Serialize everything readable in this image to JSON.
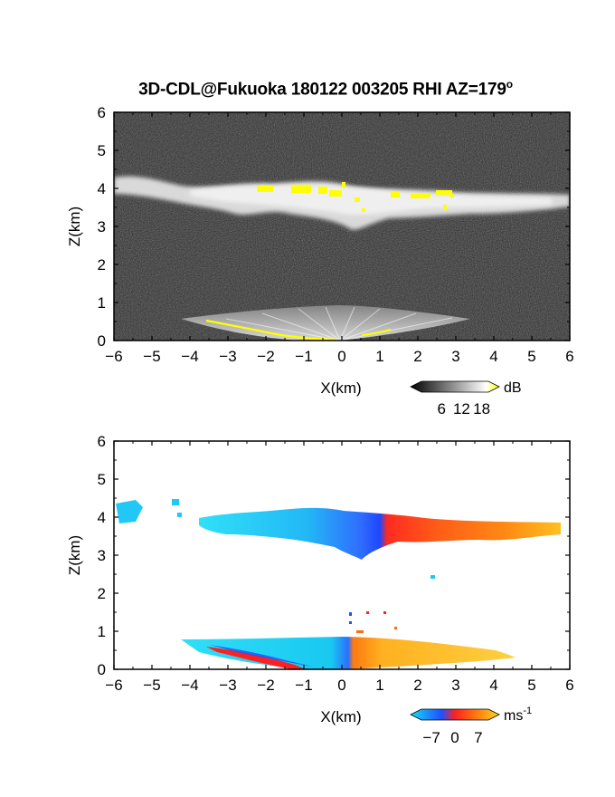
{
  "title": {
    "text": "3D-CDL@Fukuoka 180122 003205 RHI AZ=179",
    "degree_sup": "o"
  },
  "chart_data": [
    {
      "type": "heatmap",
      "name": "reflectivity-rhi",
      "xlabel": "X(km)",
      "ylabel": "Z(km)",
      "xlim": [
        -6,
        6
      ],
      "ylim": [
        0,
        6
      ],
      "xticks": [
        "-6",
        "-5",
        "-4",
        "-3",
        "-2",
        "-1",
        "0",
        "1",
        "2",
        "3",
        "4",
        "5",
        "6"
      ],
      "yticks": [
        "0",
        "1",
        "2",
        "3",
        "4",
        "5",
        "6"
      ],
      "background_color": "#2a2a2a",
      "colorbar": {
        "unit": "dB",
        "ticks": [
          "6",
          "12",
          "18"
        ],
        "tick_values": [
          6,
          12,
          18
        ],
        "range": [
          0,
          20
        ],
        "colors": [
          "#000000",
          "#ffffff",
          "#ffff00"
        ]
      },
      "features": {
        "cloud_band_z_km": [
          3.0,
          4.2
        ],
        "cloud_band_x_km": [
          -6,
          6
        ],
        "strong_echo_color": "#ffff00",
        "near_ground_fan_z_km": [
          0,
          0.7
        ]
      }
    },
    {
      "type": "heatmap",
      "name": "doppler-velocity-rhi",
      "xlabel": "X(km)",
      "ylabel": "Z(km)",
      "xlim": [
        -6,
        6
      ],
      "ylim": [
        0,
        6
      ],
      "xticks": [
        "-6",
        "-5",
        "-4",
        "-3",
        "-2",
        "-1",
        "0",
        "1",
        "2",
        "3",
        "4",
        "5",
        "6"
      ],
      "yticks": [
        "0",
        "1",
        "2",
        "3",
        "4",
        "5",
        "6"
      ],
      "background_color": "#ffffff",
      "colorbar": {
        "unit": "ms",
        "unit_sup": "-1",
        "ticks": [
          "-7",
          "0",
          "7"
        ],
        "tick_values": [
          -7,
          0,
          7
        ],
        "range": [
          -10,
          10
        ],
        "colors": [
          "#19d9f5",
          "#1e50ff",
          "#ff2020",
          "#ff6a10",
          "#ffd51e"
        ]
      },
      "features": {
        "cloud_band_z_km": [
          2.9,
          4.3
        ],
        "cloud_band_x_km": [
          -5.9,
          5.8
        ],
        "near_ground_band_z_km": [
          0,
          0.75
        ],
        "near_ground_band_x_km": [
          -4.3,
          4.7
        ]
      }
    }
  ]
}
